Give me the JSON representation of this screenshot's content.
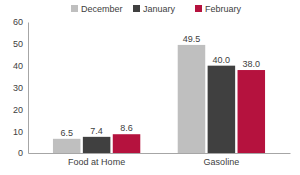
{
  "chart_data": {
    "type": "bar",
    "categories": [
      "Food at Home",
      "Gasoline"
    ],
    "series": [
      {
        "name": "December",
        "color": "#bfbfbf",
        "values": [
          6.5,
          49.5
        ],
        "value_labels": [
          "6.5",
          "49.5"
        ]
      },
      {
        "name": "January",
        "color": "#404040",
        "values": [
          7.4,
          40.0
        ],
        "value_labels": [
          "7.4",
          "40.0"
        ]
      },
      {
        "name": "February",
        "color": "#b5123e",
        "values": [
          8.6,
          38.0
        ],
        "value_labels": [
          "8.6",
          "38.0"
        ]
      }
    ],
    "ylim": [
      0,
      60
    ],
    "yticks": [
      0,
      10,
      20,
      30,
      40,
      50,
      60
    ],
    "grid": false,
    "legend": "top",
    "data_labels": true
  }
}
